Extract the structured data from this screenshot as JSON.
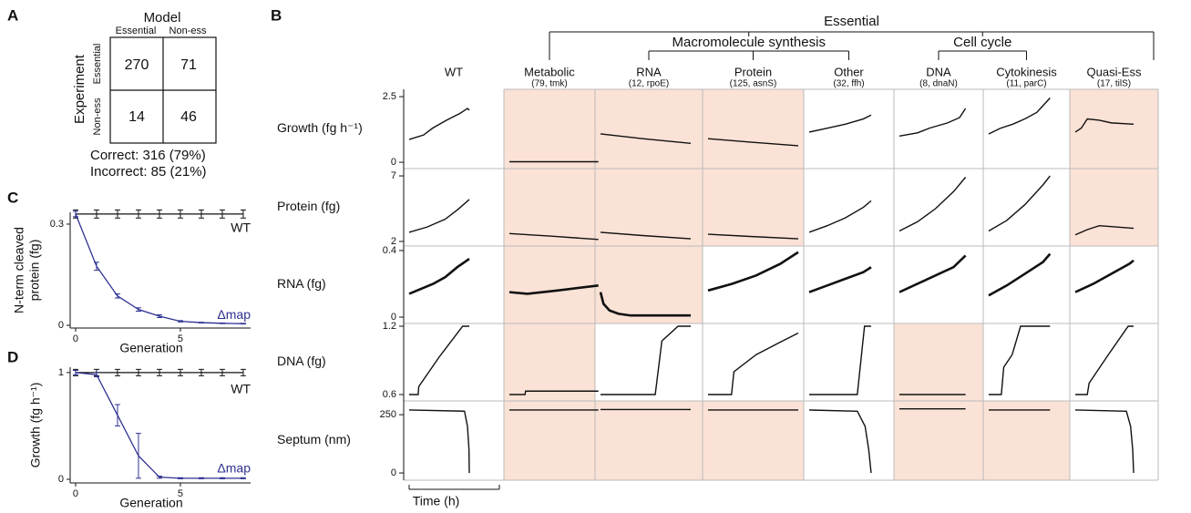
{
  "panel_a": {
    "label": "A",
    "title": "Model",
    "columns": [
      "Essential",
      "Non-ess"
    ],
    "row_title": "Experiment",
    "rows": [
      "Essential",
      "Non-ess"
    ],
    "cells": [
      [
        270,
        71
      ],
      [
        14,
        46
      ]
    ],
    "summary": [
      "Correct: 316 (79%)",
      "Incorrect: 85 (21%)"
    ]
  },
  "panel_b": {
    "label": "B",
    "groups": {
      "essential": "Essential",
      "macromolecule": "Macromolecule synthesis",
      "cell_cycle": "Cell cycle"
    },
    "columns": [
      {
        "name": "WT"
      },
      {
        "name": "Metabolic",
        "note": "(79, tmk)"
      },
      {
        "name": "RNA",
        "note": "(12, rpoE)"
      },
      {
        "name": "Protein",
        "note": "(125, asnS)"
      },
      {
        "name": "Other",
        "note": "(32, ffh)"
      },
      {
        "name": "DNA",
        "note": "(8, dnaN)"
      },
      {
        "name": "Cytokinesis",
        "note": "(11, parC)"
      },
      {
        "name": "Quasi-Ess",
        "note": "(17, tilS)"
      }
    ],
    "rows": [
      {
        "label": "Growth (fg h⁻¹)",
        "ylim": [
          -0.24,
          2.78
        ],
        "yticks": [
          0,
          2.5
        ]
      },
      {
        "label": "Protein (fg)",
        "ylim": [
          1.65,
          7.56
        ],
        "yticks": [
          2,
          7
        ]
      },
      {
        "label": "RNA (fg)",
        "ylim": [
          -0.038,
          0.427
        ],
        "yticks": [
          0,
          0.4
        ]
      },
      {
        "label": "DNA (fg)",
        "ylim": [
          0.544,
          1.224
        ],
        "yticks": [
          0.6,
          1.2
        ]
      },
      {
        "label": "Septum (nm)",
        "ylim": [
          -31,
          309
        ],
        "yticks": [
          0,
          250
        ]
      }
    ],
    "x_label": "Time (h)",
    "xlim": [
      0,
      15
    ],
    "color": "#111111",
    "shade_color": "#fbe2d6",
    "cells": [
      [
        {
          "x": [
            0,
            2.4,
            3.9,
            6.2,
            8.5,
            9.7,
            10
          ],
          "values": [
            0.87,
            1.04,
            1.3,
            1.6,
            1.87,
            2.05,
            1.98
          ],
          "shaded": false
        },
        {
          "x": [
            0,
            14.8
          ],
          "values": [
            0.02,
            0.02
          ],
          "shaded": true
        },
        {
          "x": [
            0,
            7,
            15
          ],
          "values": [
            1.08,
            0.9,
            0.72
          ],
          "shaded": true
        },
        {
          "x": [
            0,
            7,
            15
          ],
          "values": [
            0.9,
            0.77,
            0.63
          ],
          "shaded": true
        },
        {
          "x": [
            0,
            3,
            6,
            9,
            10.3
          ],
          "values": [
            1.15,
            1.3,
            1.45,
            1.65,
            1.8
          ],
          "shaded": false
        },
        {
          "x": [
            0,
            3,
            5,
            8,
            10,
            11
          ],
          "values": [
            1.0,
            1.12,
            1.3,
            1.5,
            1.7,
            2.05
          ],
          "shaded": false
        },
        {
          "x": [
            0,
            2,
            4,
            6,
            8,
            10.2
          ],
          "values": [
            1.08,
            1.3,
            1.45,
            1.65,
            1.9,
            2.45
          ],
          "shaded": false
        },
        {
          "x": [
            0,
            1,
            2,
            4,
            6,
            9.7
          ],
          "values": [
            1.15,
            1.3,
            1.65,
            1.6,
            1.5,
            1.45
          ],
          "shaded": true
        }
      ],
      [
        {
          "x": [
            0,
            3,
            6,
            8,
            10
          ],
          "values": [
            2.7,
            3.1,
            3.7,
            4.4,
            5.2
          ],
          "shaded": false
        },
        {
          "x": [
            0,
            7,
            14.8
          ],
          "values": [
            2.6,
            2.4,
            2.15
          ],
          "shaded": true
        },
        {
          "x": [
            0,
            7,
            15
          ],
          "values": [
            2.7,
            2.45,
            2.2
          ],
          "shaded": true
        },
        {
          "x": [
            0,
            7,
            15
          ],
          "values": [
            2.55,
            2.38,
            2.2
          ],
          "shaded": true
        },
        {
          "x": [
            0,
            3,
            6,
            9,
            10.3
          ],
          "values": [
            2.7,
            3.2,
            3.8,
            4.6,
            5.1
          ],
          "shaded": false
        },
        {
          "x": [
            0,
            3,
            6,
            9,
            11
          ],
          "values": [
            2.8,
            3.5,
            4.5,
            5.8,
            6.9
          ],
          "shaded": false
        },
        {
          "x": [
            0,
            3,
            6,
            9,
            10.2
          ],
          "values": [
            2.8,
            3.6,
            4.8,
            6.3,
            7
          ],
          "shaded": false
        },
        {
          "x": [
            0,
            2,
            4,
            7,
            9.7
          ],
          "values": [
            2.5,
            2.9,
            3.2,
            3.1,
            3.0
          ],
          "shaded": true
        }
      ],
      [
        {
          "x": [
            0,
            2,
            4,
            6,
            8,
            10
          ],
          "values": [
            0.14,
            0.17,
            0.2,
            0.24,
            0.3,
            0.35
          ],
          "shaded": false
        },
        {
          "x": [
            0,
            3,
            8,
            14.8
          ],
          "values": [
            0.15,
            0.14,
            0.16,
            0.19
          ],
          "shaded": true
        },
        {
          "x": [
            0,
            0.5,
            1.5,
            3,
            5,
            15
          ],
          "values": [
            0.15,
            0.08,
            0.04,
            0.02,
            0.01,
            0.01
          ],
          "shaded": true
        },
        {
          "x": [
            0,
            4,
            8,
            12,
            15
          ],
          "values": [
            0.16,
            0.2,
            0.25,
            0.32,
            0.39
          ],
          "shaded": false
        },
        {
          "x": [
            0,
            3,
            6,
            9,
            10.3
          ],
          "values": [
            0.15,
            0.19,
            0.23,
            0.27,
            0.3
          ],
          "shaded": false
        },
        {
          "x": [
            0,
            3,
            6,
            9,
            11
          ],
          "values": [
            0.15,
            0.2,
            0.25,
            0.3,
            0.37
          ],
          "shaded": false
        },
        {
          "x": [
            0,
            3,
            6,
            9,
            10.2
          ],
          "values": [
            0.13,
            0.19,
            0.26,
            0.33,
            0.38
          ],
          "shaded": false
        },
        {
          "x": [
            0,
            3,
            6,
            9,
            9.7
          ],
          "values": [
            0.15,
            0.2,
            0.26,
            0.32,
            0.34
          ],
          "shaded": false
        }
      ],
      [
        {
          "x": [
            0,
            1.5,
            1.6,
            5,
            8.9,
            10
          ],
          "values": [
            0.6,
            0.6,
            0.67,
            0.93,
            1.2,
            1.2
          ],
          "shaded": false
        },
        {
          "x": [
            0,
            2.6,
            2.7,
            14.8
          ],
          "values": [
            0.6,
            0.6,
            0.63,
            0.63
          ],
          "shaded": true
        },
        {
          "x": [
            0,
            9.1,
            10.2,
            12.9,
            15
          ],
          "values": [
            0.6,
            0.6,
            1.07,
            1.2,
            1.2
          ],
          "shaded": false
        },
        {
          "x": [
            0,
            3.9,
            4.3,
            8,
            12,
            15
          ],
          "values": [
            0.6,
            0.6,
            0.8,
            0.95,
            1.06,
            1.14
          ],
          "shaded": false
        },
        {
          "x": [
            0,
            8,
            9.2,
            10.3
          ],
          "values": [
            0.6,
            0.6,
            1.2,
            1.2
          ],
          "shaded": false
        },
        {
          "x": [
            0,
            11
          ],
          "values": [
            0.6,
            0.6
          ],
          "shaded": true
        },
        {
          "x": [
            0,
            2.1,
            2.5,
            3.9,
            5.3,
            10.2
          ],
          "values": [
            0.6,
            0.6,
            0.84,
            0.95,
            1.2,
            1.2
          ],
          "shaded": false
        },
        {
          "x": [
            0,
            2,
            2.3,
            5.5,
            8.8,
            9.7
          ],
          "values": [
            0.6,
            0.6,
            0.7,
            0.95,
            1.2,
            1.2
          ],
          "shaded": false
        }
      ],
      [
        {
          "x": [
            0,
            9.2,
            9.7,
            9.95,
            10
          ],
          "values": [
            270,
            265,
            200,
            100,
            0
          ],
          "shaded": false
        },
        {
          "x": [
            0,
            14.8
          ],
          "values": [
            270,
            270
          ],
          "shaded": true
        },
        {
          "x": [
            0,
            15
          ],
          "values": [
            272,
            272
          ],
          "shaded": true
        },
        {
          "x": [
            0,
            15
          ],
          "values": [
            270,
            270
          ],
          "shaded": true
        },
        {
          "x": [
            0,
            8,
            9.3,
            9.9,
            10.3
          ],
          "values": [
            270,
            265,
            200,
            100,
            0
          ],
          "shaded": false
        },
        {
          "x": [
            0,
            11
          ],
          "values": [
            275,
            275
          ],
          "shaded": true
        },
        {
          "x": [
            0,
            10.2
          ],
          "values": [
            270,
            270
          ],
          "shaded": true
        },
        {
          "x": [
            0,
            8.5,
            9.2,
            9.55,
            9.7
          ],
          "values": [
            270,
            265,
            200,
            100,
            0
          ],
          "shaded": false
        }
      ]
    ]
  },
  "chart_data": [
    {
      "type": "line",
      "label": "C",
      "ylabel": [
        "N-term cleaved",
        "protein (fg)"
      ],
      "xlabel": "Generation",
      "x": [
        0,
        1,
        2,
        3,
        4,
        5,
        6,
        7,
        8
      ],
      "xlim": [
        -0.26,
        8.35
      ],
      "ylim": [
        -0.008,
        0.335
      ],
      "xticks": [
        0,
        5
      ],
      "yticks": [
        0,
        0.3
      ],
      "series": [
        {
          "name": "WT",
          "color": "#111111",
          "values": [
            0.33,
            0.33,
            0.33,
            0.33,
            0.33,
            0.33,
            0.33,
            0.33,
            0.33
          ],
          "errors": [
            0.012,
            0.012,
            0.012,
            0.012,
            0.012,
            0.012,
            0.012,
            0.012,
            0.012
          ]
        },
        {
          "name": "Δmap",
          "color": "#2e3192",
          "values": [
            0.33,
            0.175,
            0.087,
            0.047,
            0.027,
            0.012,
            0.008,
            0.006,
            0.005
          ],
          "errors": [
            0.008,
            0.012,
            0.006,
            0.005,
            0.004,
            0.002,
            0.001,
            0.001,
            0.001
          ]
        }
      ]
    },
    {
      "type": "line",
      "label": "D",
      "ylabel": [
        "Growth (fg h⁻¹)"
      ],
      "xlabel": "Generation",
      "x": [
        0,
        1,
        2,
        3,
        4,
        5,
        6,
        7,
        8
      ],
      "xlim": [
        -0.26,
        8.35
      ],
      "ylim": [
        -0.034,
        1.05
      ],
      "xticks": [
        0,
        5
      ],
      "yticks": [
        0,
        1
      ],
      "series": [
        {
          "name": "WT",
          "color": "#111111",
          "values": [
            1.0,
            1.0,
            1.0,
            1.0,
            1.0,
            1.0,
            1.0,
            1.0,
            1.0
          ],
          "errors": [
            0.03,
            0.03,
            0.03,
            0.03,
            0.03,
            0.03,
            0.03,
            0.03,
            0.03
          ]
        },
        {
          "name": "Δmap",
          "color": "#2e3192",
          "values": [
            1.0,
            0.98,
            0.6,
            0.22,
            0.02,
            0.01,
            0.01,
            0.01,
            0.01
          ],
          "errors": [
            0.02,
            0.02,
            0.1,
            0.21,
            0.01,
            0.005,
            0.005,
            0.005,
            0.005
          ]
        }
      ]
    }
  ]
}
